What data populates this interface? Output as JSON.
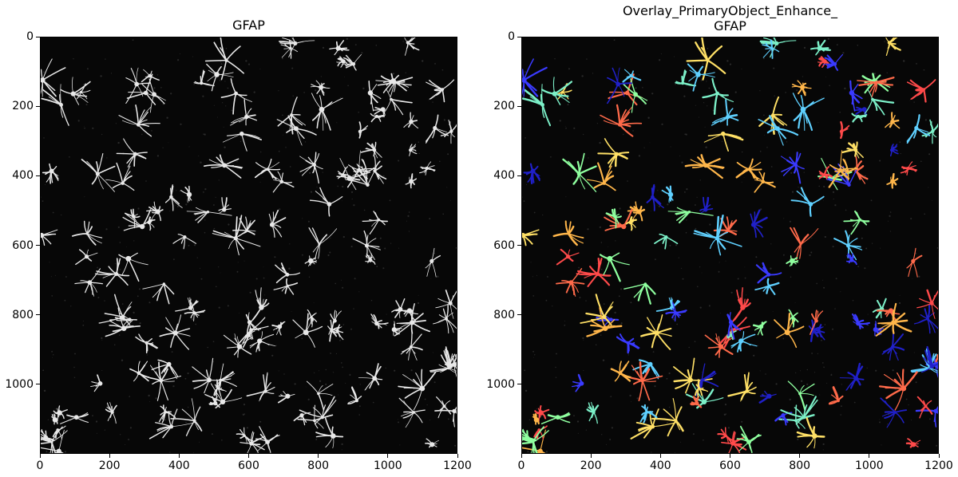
{
  "panels": [
    {
      "title": "GFAP",
      "image": "grayscale-astrocyte-micrograph",
      "x_ticks": [
        "0",
        "200",
        "400",
        "600",
        "800",
        "1000",
        "1200"
      ],
      "y_ticks": [
        "0",
        "200",
        "400",
        "600",
        "800",
        "1000"
      ],
      "x_range": [
        0,
        1200
      ],
      "y_range": [
        0,
        1200
      ]
    },
    {
      "title": "Overlay_PrimaryObject_Enhance_\nGFAP",
      "image": "colored-segmentation-overlay",
      "x_ticks": [
        "0",
        "200",
        "400",
        "600",
        "800",
        "1000",
        "1200"
      ],
      "y_ticks": [
        "0",
        "200",
        "400",
        "600",
        "800",
        "1000"
      ],
      "x_range": [
        0,
        1200
      ],
      "y_range": [
        0,
        1200
      ]
    }
  ],
  "colors": {
    "cell_gray": "#e8e8e8",
    "overlay_palette": [
      "#3a3aff",
      "#5fd0ff",
      "#8fff9f",
      "#ff6a4a",
      "#ffb64a",
      "#ffe066",
      "#2020c8",
      "#ff4a4a",
      "#7cf0c8"
    ]
  }
}
